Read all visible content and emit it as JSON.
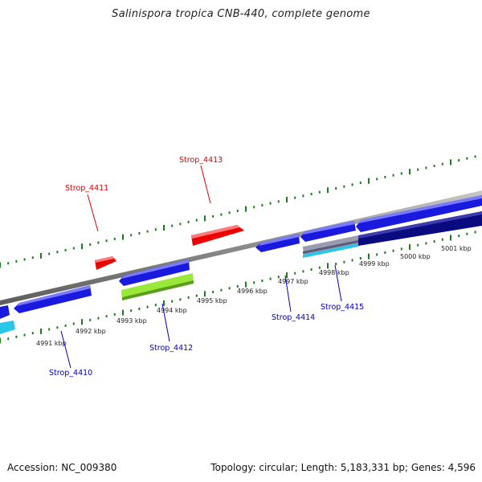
{
  "title": "Salinispora tropica CNB-440, complete genome",
  "footer": {
    "accession": "Accession: NC_009380",
    "summary": "Topology: circular; Length: 5,183,331 bp; Genes: 4,596"
  },
  "colors": {
    "backbone": "#8a8a8a",
    "tick": "#1f7a1f",
    "forward_label": "#dd0000",
    "reverse_label": "#0000bb",
    "cds_blue": "#1a1adf",
    "cds_red": "#ee0000",
    "cds_green": "#9ae83a",
    "cds_cyan": "#29c6e8",
    "cds_navy": "#0b0b80",
    "cds_gray": "#9a9ab0"
  },
  "tick_labels": [
    "4991 kbp",
    "4992 kbp",
    "4993 kbp",
    "4994 kbp",
    "4995 kbp",
    "4996 kbp",
    "4997 kbp",
    "4998 kbp",
    "4999 kbp",
    "5000 kbp",
    "5001 kbp"
  ],
  "genes": {
    "forward_labels": [
      "Strop_4411",
      "Strop_4413"
    ],
    "reverse_labels": [
      "Strop_4410",
      "Strop_4412",
      "Strop_4414",
      "Strop_4415"
    ]
  }
}
